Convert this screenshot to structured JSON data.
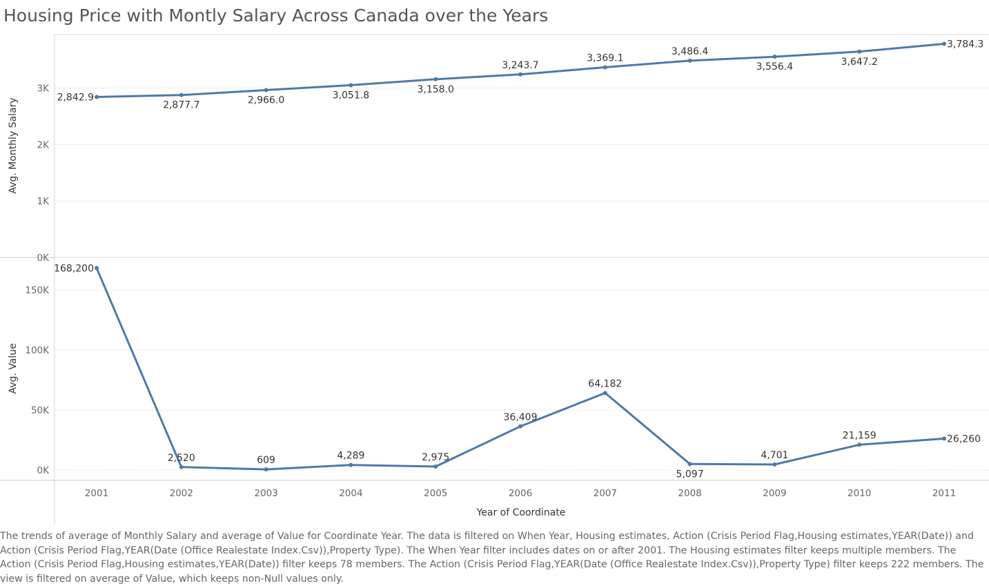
{
  "title": "Housing Price with Montly Salary Across Canada over the Years",
  "caption": "The trends of average of Monthly Salary and average of Value for Coordinate Year. The data is filtered on When Year, Housing estimates, Action (Crisis Period Flag,Housing estimates,YEAR(Date)) and Action (Crisis Period Flag,YEAR(Date (Office Realestate Index.Csv)),Property Type). The When Year filter includes dates on or after 2001. The Housing estimates filter keeps multiple members. The Action (Crisis Period Flag,Housing estimates,YEAR(Date)) filter keeps 78 members. The Action (Crisis Period Flag,YEAR(Date (Office Realestate Index.Csv)),Property Type) filter keeps 222 members. The view is filtered on average of Value, which keeps non-Null values only.",
  "colors": {
    "line": "#4e79a7",
    "grid": "#eeeeee",
    "axis": "#d4d4d4"
  },
  "chart_data": {
    "type": "line",
    "categories": [
      "2001",
      "2002",
      "2003",
      "2004",
      "2005",
      "2006",
      "2007",
      "2008",
      "2009",
      "2010",
      "2011"
    ],
    "xlabel": "Year of Coordinate",
    "panels": [
      {
        "ylabel": "Avg. Monthly Salary",
        "values": [
          2842.9,
          2877.7,
          2966.0,
          3051.8,
          3158.0,
          3243.7,
          3369.1,
          3486.4,
          3556.4,
          3647.2,
          3784.3
        ],
        "labels": [
          "2,842.9",
          "2,877.7",
          "2,966.0",
          "3,051.8",
          "3,158.0",
          "3,243.7",
          "3,369.1",
          "3,486.4",
          "3,556.4",
          "3,647.2",
          "3,784.3"
        ],
        "label_positions": [
          "left",
          "below",
          "below",
          "below",
          "below",
          "above",
          "above",
          "above",
          "below",
          "below",
          "right"
        ],
        "ylim": [
          0,
          3950
        ],
        "ticks": [
          0,
          1000,
          2000,
          3000
        ],
        "tick_labels": [
          "0K",
          "1K",
          "2K",
          "3K"
        ]
      },
      {
        "ylabel": "Avg. Value",
        "values": [
          168200,
          2520,
          609,
          4289,
          2975,
          36409,
          64182,
          5097,
          4701,
          21159,
          26260
        ],
        "labels": [
          "168,200",
          "2,520",
          "609",
          "4,289",
          "2,975",
          "36,409",
          "64,182",
          "5,097",
          "4,701",
          "21,159",
          "26,260"
        ],
        "label_positions": [
          "left",
          "above",
          "above",
          "above",
          "above",
          "above",
          "above",
          "below",
          "above",
          "above",
          "right"
        ],
        "ylim": [
          -8500,
          177000
        ],
        "ticks": [
          0,
          50000,
          100000,
          150000
        ],
        "tick_labels": [
          "0K",
          "50K",
          "100K",
          "150K"
        ]
      }
    ]
  }
}
